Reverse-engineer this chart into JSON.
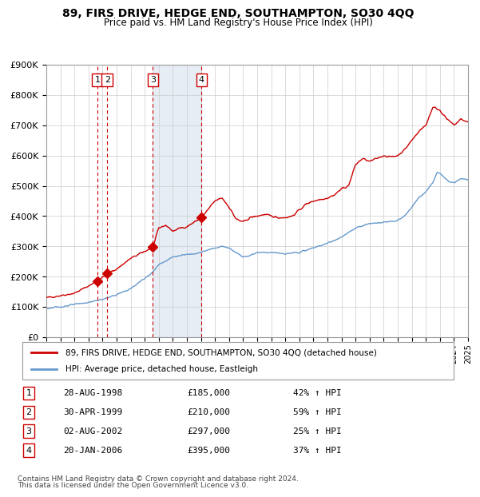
{
  "title": "89, FIRS DRIVE, HEDGE END, SOUTHAMPTON, SO30 4QQ",
  "subtitle": "Price paid vs. HM Land Registry's House Price Index (HPI)",
  "x_start_year": 1995,
  "x_end_year": 2025,
  "y_min": 0,
  "y_max": 900000,
  "y_ticks": [
    0,
    100000,
    200000,
    300000,
    400000,
    500000,
    600000,
    700000,
    800000,
    900000
  ],
  "sale_points": [
    {
      "year": 1998.65,
      "price": 185000,
      "label": "1"
    },
    {
      "year": 1999.33,
      "price": 210000,
      "label": "2"
    },
    {
      "year": 2002.58,
      "price": 297000,
      "label": "3"
    },
    {
      "year": 2006.05,
      "price": 395000,
      "label": "4"
    }
  ],
  "transactions": [
    {
      "num": "1",
      "date": "28-AUG-1998",
      "price": "£185,000",
      "hpi": "42% ↑ HPI"
    },
    {
      "num": "2",
      "date": "30-APR-1999",
      "price": "£210,000",
      "hpi": "59% ↑ HPI"
    },
    {
      "num": "3",
      "date": "02-AUG-2002",
      "price": "£297,000",
      "hpi": "25% ↑ HPI"
    },
    {
      "num": "4",
      "date": "20-JAN-2006",
      "price": "£395,000",
      "hpi": "37% ↑ HPI"
    }
  ],
  "red_line_color": "#cc0000",
  "blue_line_color": "#6699cc",
  "shaded_region": [
    2002.58,
    2006.05
  ],
  "footnote1": "Contains HM Land Registry data © Crown copyright and database right 2024.",
  "footnote2": "This data is licensed under the Open Government Licence v3.0.",
  "legend1": "89, FIRS DRIVE, HEDGE END, SOUTHAMPTON, SO30 4QQ (detached house)",
  "legend2": "HPI: Average price, detached house, Eastleigh"
}
